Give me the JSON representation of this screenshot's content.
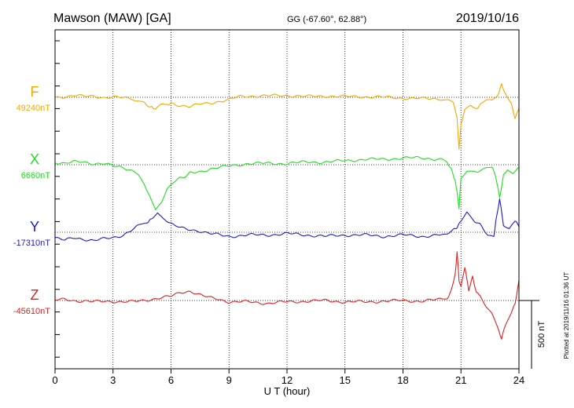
{
  "header": {
    "station": "Mawson (MAW)  [GA]",
    "coords": "GG (-67.60°,  62.88°)",
    "date": "2019/10/16"
  },
  "footer": {
    "plotted": "Plotted at 2019/11/16 01:36 UT"
  },
  "scale_bar": {
    "label": "500 nT",
    "value_nT": 500
  },
  "chart_data": {
    "type": "line",
    "title": "Mawson (MAW)  [GA]",
    "xlabel": "U T (hour)",
    "xlim": [
      0,
      24
    ],
    "xticks": [
      0,
      3,
      6,
      9,
      12,
      15,
      18,
      21,
      24
    ],
    "xtick_labels": [
      "0",
      "3",
      "6",
      "9",
      "12",
      "15",
      "18",
      "21",
      "24"
    ],
    "grid": true,
    "units": "nT",
    "series": [
      {
        "name": "F",
        "baseline_label": "49240nT",
        "baseline_nT": 49240,
        "color": "#f5a800",
        "x": [
          0,
          0.5,
          1,
          1.5,
          2,
          2.5,
          3,
          3.5,
          4,
          4.3,
          4.6,
          5,
          5.2,
          5.5,
          5.8,
          6,
          6.5,
          7,
          7.5,
          8,
          8.5,
          9,
          9.5,
          10,
          11,
          12,
          13,
          14,
          15,
          16,
          17,
          18,
          19,
          20,
          20.3,
          20.6,
          20.8,
          20.9,
          21,
          21.2,
          21.5,
          21.8,
          22,
          22.3,
          22.6,
          22.9,
          23.1,
          23.3,
          23.6,
          23.8,
          24
        ],
        "values": [
          0,
          5,
          15,
          5,
          8,
          0,
          2,
          -5,
          -10,
          -20,
          -40,
          -70,
          -90,
          -60,
          -50,
          -40,
          -60,
          -70,
          -50,
          -40,
          -30,
          -20,
          5,
          10,
          10,
          15,
          5,
          10,
          5,
          5,
          0,
          -5,
          -10,
          -10,
          -20,
          -40,
          -150,
          -380,
          -200,
          -100,
          -60,
          -80,
          -50,
          -30,
          -20,
          20,
          100,
          30,
          -50,
          -150,
          -80
        ]
      },
      {
        "name": "X",
        "baseline_label": "6660nT",
        "baseline_nT": 6660,
        "color": "#22dd22",
        "x": [
          0,
          0.5,
          1,
          1.5,
          2,
          2.5,
          3,
          3.5,
          4,
          4.3,
          4.6,
          4.9,
          5.2,
          5.5,
          5.8,
          6.2,
          6.6,
          7,
          7.5,
          8,
          8.5,
          9,
          10,
          11,
          12,
          13,
          14,
          15,
          16,
          17,
          18,
          19,
          20,
          20.3,
          20.5,
          20.7,
          20.8,
          20.9,
          21,
          21.3,
          21.6,
          22,
          22.3,
          22.6,
          22.8,
          23,
          23.2,
          23.4,
          23.7,
          24
        ],
        "values": [
          20,
          10,
          20,
          20,
          10,
          10,
          -10,
          -20,
          -40,
          -80,
          -140,
          -220,
          -330,
          -270,
          -170,
          -120,
          -90,
          -60,
          -50,
          -30,
          -20,
          -10,
          10,
          10,
          10,
          20,
          20,
          30,
          40,
          40,
          50,
          50,
          40,
          10,
          -40,
          -120,
          -200,
          -320,
          -100,
          -50,
          -60,
          -40,
          -20,
          -10,
          -80,
          -240,
          -80,
          -40,
          -60,
          -20
        ]
      },
      {
        "name": "Y",
        "baseline_label": "-17310nT",
        "baseline_nT": -17310,
        "color": "#1a1ad6",
        "x": [
          0,
          0.5,
          1,
          1.5,
          2,
          2.5,
          3,
          3.5,
          4,
          4.5,
          4.8,
          5,
          5.3,
          5.6,
          6,
          6.5,
          7,
          7.5,
          8,
          8.5,
          9,
          10,
          11,
          12,
          13,
          14,
          15,
          16,
          17,
          18,
          19,
          20,
          20.3,
          20.6,
          20.8,
          21,
          21.3,
          21.6,
          22,
          22.4,
          22.7,
          22.8,
          23,
          23.2,
          23.5,
          23.8,
          24
        ],
        "values": [
          -40,
          -60,
          -40,
          -50,
          -60,
          -50,
          -40,
          -20,
          20,
          60,
          80,
          100,
          150,
          100,
          60,
          30,
          20,
          10,
          -10,
          -20,
          -30,
          -20,
          -20,
          -10,
          -20,
          -30,
          -20,
          -20,
          -30,
          -20,
          -30,
          -20,
          -10,
          20,
          40,
          90,
          150,
          100,
          50,
          -20,
          -30,
          80,
          250,
          60,
          30,
          80,
          40
        ]
      },
      {
        "name": "Z",
        "baseline_label": "-45610nT",
        "baseline_nT": -45610,
        "color": "#e02020",
        "x": [
          0,
          0.5,
          1,
          1.5,
          2,
          2.5,
          3,
          3.5,
          4,
          4.5,
          5,
          5.5,
          6,
          6.5,
          7,
          7.5,
          8,
          8.5,
          9,
          10,
          11,
          12,
          13,
          14,
          15,
          16,
          17,
          18,
          19,
          20,
          20.3,
          20.5,
          20.7,
          20.8,
          20.9,
          21,
          21.2,
          21.4,
          21.6,
          21.8,
          22,
          22.3,
          22.6,
          22.9,
          23.1,
          23.3,
          23.6,
          23.8,
          24
        ],
        "values": [
          0,
          10,
          0,
          -5,
          -10,
          -5,
          -5,
          -10,
          -10,
          0,
          10,
          20,
          30,
          60,
          70,
          40,
          20,
          10,
          -10,
          -10,
          -20,
          -10,
          -5,
          0,
          -10,
          -10,
          -5,
          0,
          -5,
          10,
          20,
          80,
          200,
          350,
          150,
          100,
          250,
          80,
          180,
          60,
          40,
          -40,
          -100,
          -200,
          -280,
          -180,
          -80,
          -20,
          150
        ]
      }
    ]
  }
}
